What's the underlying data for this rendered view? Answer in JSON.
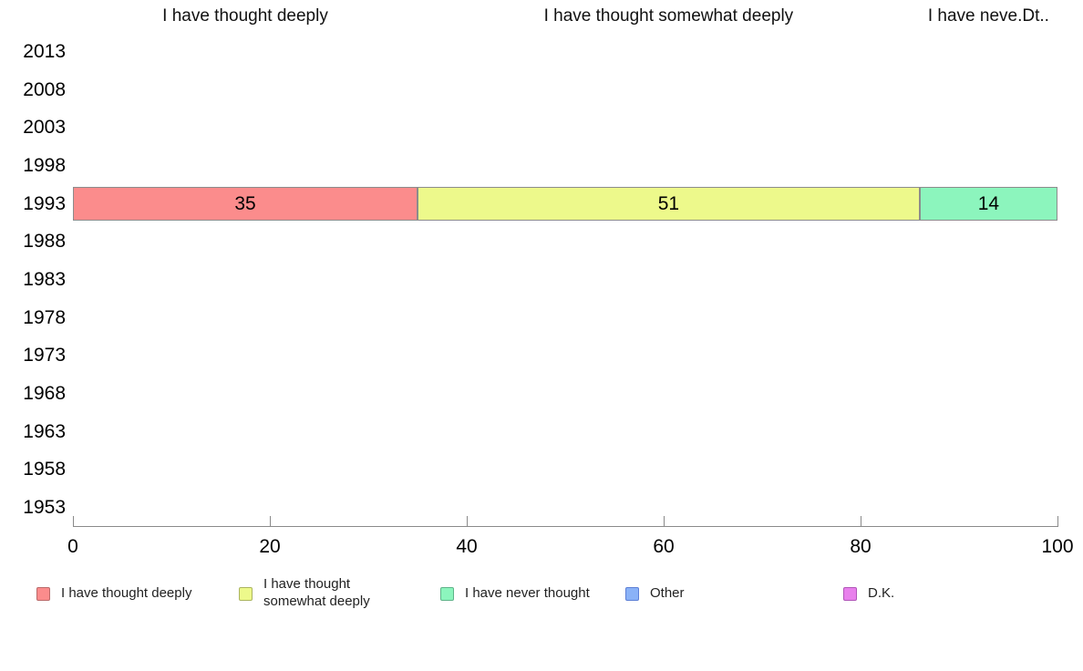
{
  "chart_data": {
    "type": "bar",
    "orientation": "horizontal-stacked",
    "categories": [
      "2013",
      "2008",
      "2003",
      "1998",
      "1993",
      "1988",
      "1983",
      "1978",
      "1973",
      "1968",
      "1963",
      "1958",
      "1953"
    ],
    "series": [
      {
        "name": "I have thought deeply",
        "color": "#FB8C8C",
        "border": "#BA6A6A",
        "values": [
          null,
          null,
          null,
          null,
          35,
          null,
          null,
          null,
          null,
          null,
          null,
          null,
          null
        ]
      },
      {
        "name": "I have thought somewhat deeply",
        "color": "#EDF98B",
        "border": "#ABB45F",
        "values": [
          null,
          null,
          null,
          null,
          51,
          null,
          null,
          null,
          null,
          null,
          null,
          null,
          null
        ]
      },
      {
        "name": "I have never thought",
        "color": "#8CF5BD",
        "border": "#5FB389",
        "values": [
          null,
          null,
          null,
          null,
          14,
          null,
          null,
          null,
          null,
          null,
          null,
          null,
          null
        ]
      },
      {
        "name": "Other",
        "color": "#8AB2F7",
        "border": "#5C7FD6",
        "values": [
          null,
          null,
          null,
          null,
          null,
          null,
          null,
          null,
          null,
          null,
          null,
          null,
          null
        ]
      },
      {
        "name": "D.K.",
        "color": "#E880EC",
        "border": "#B055B8",
        "values": [
          null,
          null,
          null,
          null,
          null,
          null,
          null,
          null,
          null,
          null,
          null,
          null,
          null
        ]
      }
    ],
    "top_labels": [
      "I have thought deeply",
      "I have thought somewhat deeply",
      "I have neve.Dt.."
    ],
    "x_ticks": [
      0,
      20,
      40,
      60,
      80,
      100
    ],
    "xlim": [
      0,
      100
    ],
    "grid": false,
    "legend_position": "bottom",
    "legend": [
      {
        "label": "I have thought deeply",
        "color": "#FB8C8C",
        "border": "#BA6A6A",
        "wrap": false
      },
      {
        "label": "I have thought somewhat deeply",
        "color": "#EDF98B",
        "border": "#ABB45F",
        "wrap": true
      },
      {
        "label": "I have never thought",
        "color": "#8CF5BD",
        "border": "#5FB389",
        "wrap": false
      },
      {
        "label": "Other",
        "color": "#8AB2F7",
        "border": "#5C7FD6",
        "wrap": false
      },
      {
        "label": "D.K.",
        "color": "#E880EC",
        "border": "#B055B8",
        "wrap": false
      }
    ]
  }
}
